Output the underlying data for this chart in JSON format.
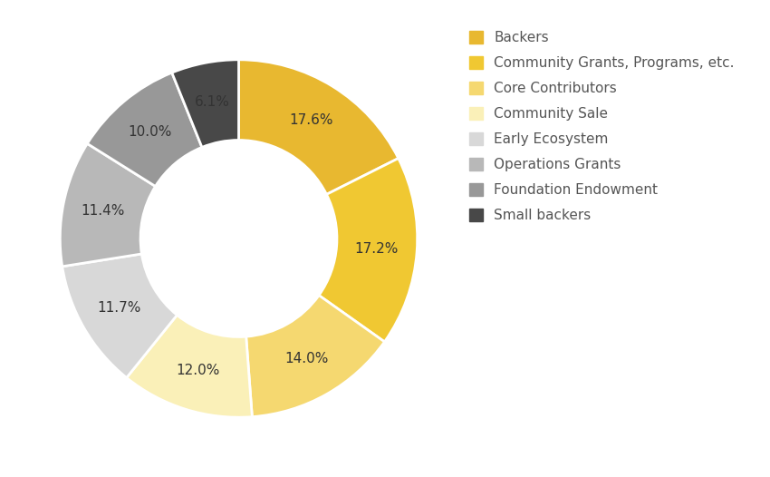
{
  "labels": [
    "Backers",
    "Community Grants, Programs, etc.",
    "Core Contributors",
    "Community Sale",
    "Early Ecosystem",
    "Operations Grants",
    "Foundation Endowment",
    "Small backers"
  ],
  "values": [
    17.6,
    17.2,
    14.0,
    12.0,
    11.7,
    11.4,
    10.0,
    6.1
  ],
  "colors": [
    "#E8B830",
    "#F0C832",
    "#F5D870",
    "#FAF0B8",
    "#D8D8D8",
    "#B8B8B8",
    "#989898",
    "#484848"
  ],
  "pct_labels": [
    "17.6%",
    "17.2%",
    "14.0%",
    "12.0%",
    "11.7%",
    "11.4%",
    "10.0%",
    "6.1%"
  ],
  "background_color": "#ffffff",
  "wedge_edge_color": "#ffffff",
  "wedge_linewidth": 2.0,
  "donut_hole": 0.55,
  "font_size_pct": 11,
  "font_size_legend": 11,
  "startangle": 90
}
